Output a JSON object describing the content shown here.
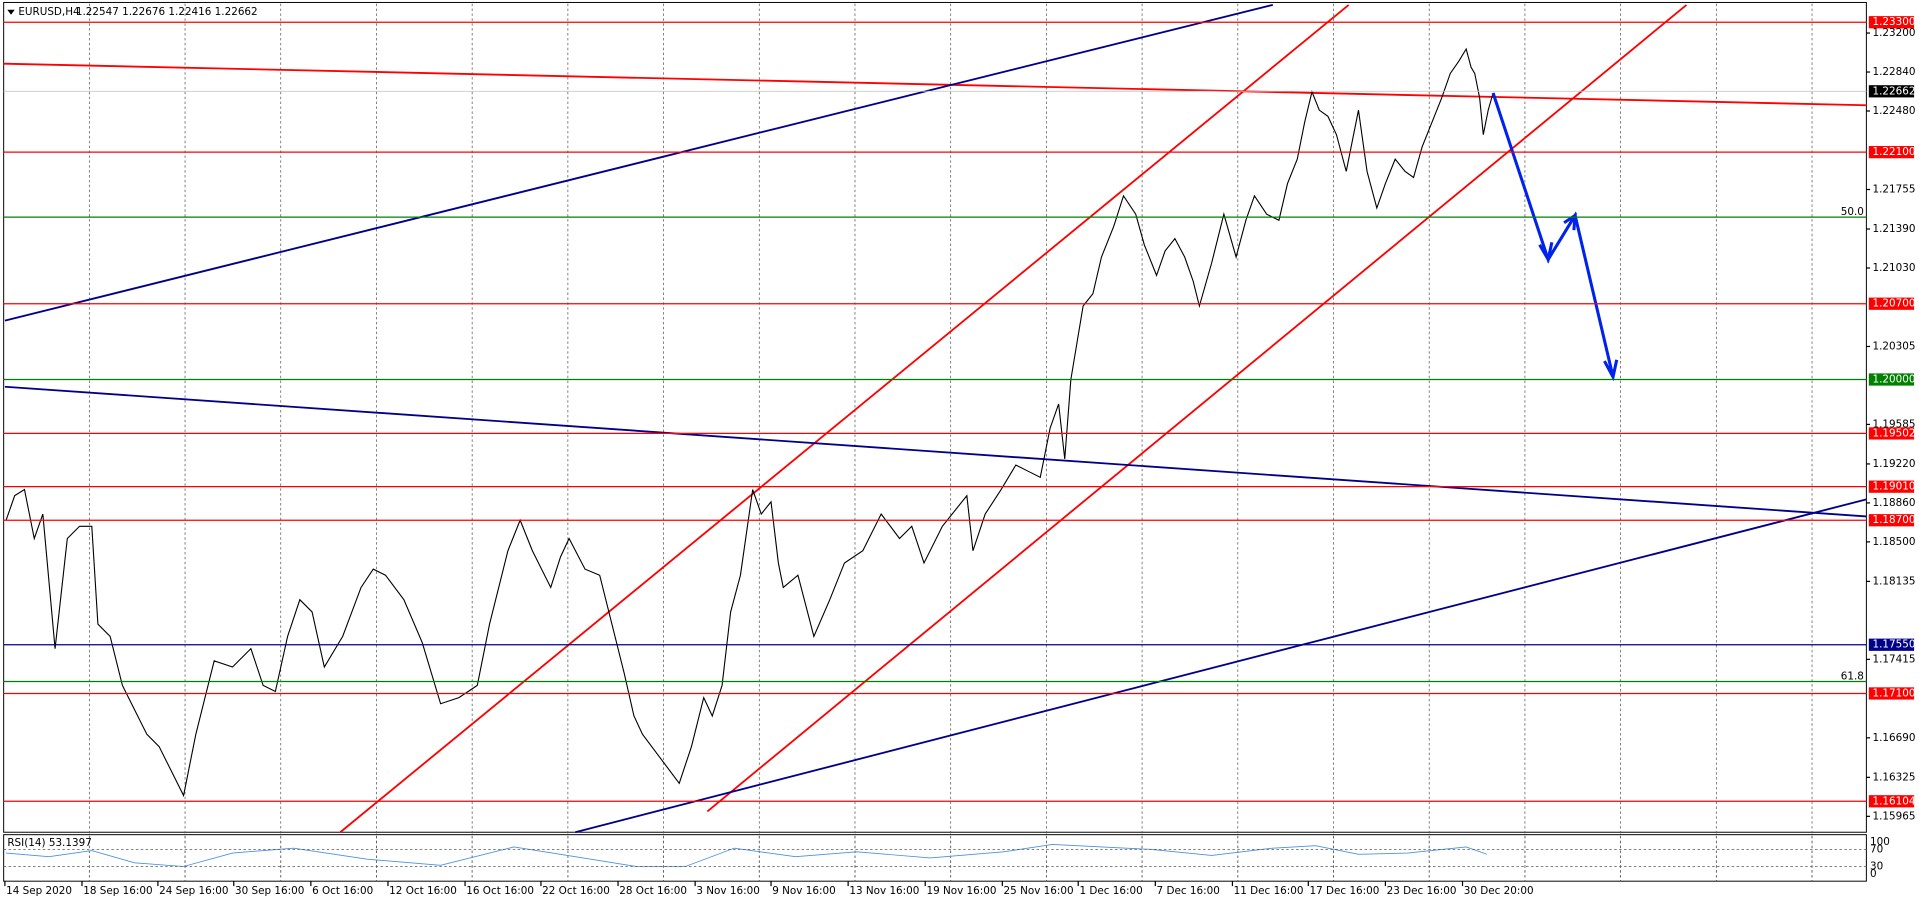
{
  "header": {
    "title": "EURUSD,H4",
    "quote": "1.22547 1.22676 1.22416 1.22662"
  },
  "price_axis": [
    "1.23200",
    "1.22840",
    "1.22480",
    "1.21755",
    "1.21390",
    "1.21030",
    "1.20305",
    "1.19585",
    "1.19220",
    "1.18860",
    "1.18500",
    "1.18135",
    "1.17415",
    "1.16690",
    "1.16325",
    "1.15965"
  ],
  "levels": [
    {
      "label": "1.23300",
      "color": "#ff0000"
    },
    {
      "label": "1.22662",
      "color": "#000000"
    },
    {
      "label": "1.22100",
      "color": "#ff0000"
    },
    {
      "label": "1.20700",
      "color": "#ff0000"
    },
    {
      "label": "1.20000",
      "color": "#008000"
    },
    {
      "label": "1.19502",
      "color": "#ff0000"
    },
    {
      "label": "1.19010",
      "color": "#ff0000"
    },
    {
      "label": "1.18700",
      "color": "#ff0000"
    },
    {
      "label": "1.17550",
      "color": "#00008b"
    },
    {
      "label": "1.17100",
      "color": "#ff0000"
    },
    {
      "label": "1.16104",
      "color": "#ff0000"
    }
  ],
  "fibo": [
    {
      "label": "50.0",
      "price": "1.21500"
    },
    {
      "label": "61.8",
      "price": "1.17210"
    }
  ],
  "time_axis": [
    "14 Sep 2020",
    "18 Sep 16:00",
    "24 Sep 16:00",
    "30 Sep 16:00",
    "6 Oct 16:00",
    "12 Oct 16:00",
    "16 Oct 16:00",
    "22 Oct 16:00",
    "28 Oct 16:00",
    "3 Nov 16:00",
    "9 Nov 16:00",
    "13 Nov 16:00",
    "19 Nov 16:00",
    "25 Nov 16:00",
    "1 Dec 16:00",
    "7 Dec 16:00",
    "11 Dec 16:00",
    "17 Dec 16:00",
    "23 Dec 16:00",
    "30 Dec 20:00"
  ],
  "rsi": {
    "title": "RSI(14) 53.1397",
    "axis": [
      "100",
      "70",
      "30",
      "0"
    ]
  }
}
